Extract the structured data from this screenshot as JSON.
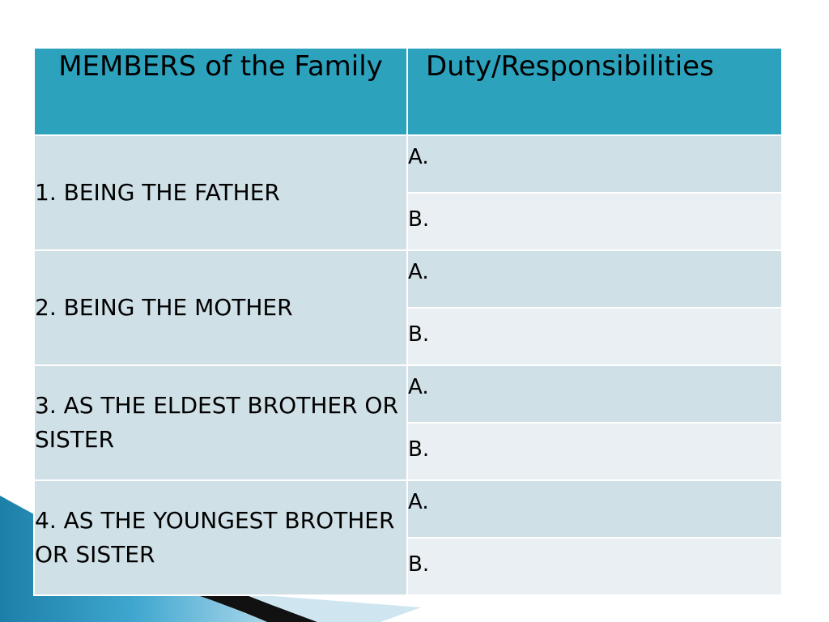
{
  "table": {
    "header": {
      "members": "MEMBERS of the Family",
      "duty": "Duty/Responsibilities"
    },
    "rows": [
      {
        "member": "1. BEING THE FATHER",
        "duties": [
          "A.",
          "B."
        ]
      },
      {
        "member": "2. BEING THE MOTHER",
        "duties": [
          "A.",
          "B."
        ]
      },
      {
        "member": "3. AS THE ELDEST BROTHER OR SISTER",
        "duties": [
          "A.",
          "B."
        ]
      },
      {
        "member": "4. AS THE YOUNGEST BROTHER OR SISTER",
        "duties": [
          "A.",
          "B."
        ]
      }
    ]
  },
  "colors": {
    "header_bg": "#2ca2bd",
    "row_dark": "#d0e0e7",
    "row_light": "#e9eff2",
    "swoosh_blue": "#1c7fa8",
    "swoosh_black": "#111111"
  }
}
